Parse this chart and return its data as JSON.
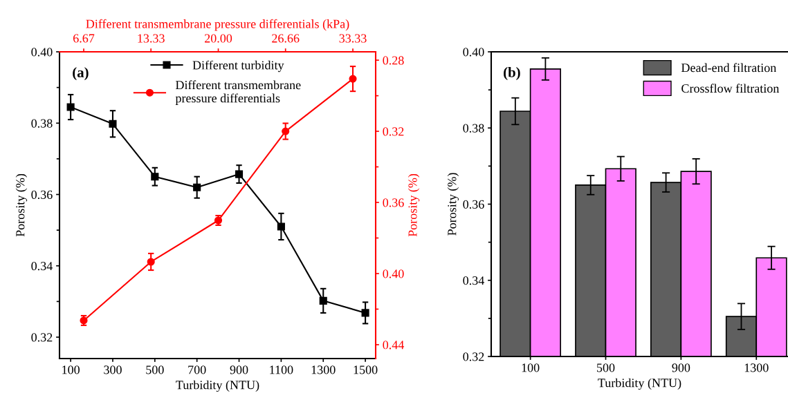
{
  "chart_data": [
    {
      "type": "line",
      "xlabel": "Turbidity (NTU)",
      "ylabel": "Porosity (%)",
      "annotations": [
        "(a)"
      ],
      "legend": "top",
      "grid": false,
      "xlim": [
        47,
        1549
      ],
      "xticks": [
        100,
        300,
        500,
        700,
        900,
        1100,
        1300,
        1500
      ],
      "ylim": [
        0.314,
        0.4
      ],
      "yticks": [
        {
          "value": 0.32,
          "label": "0.32"
        },
        {
          "value": 0.33,
          "label": null
        },
        {
          "value": 0.34,
          "label": "0.34"
        },
        {
          "value": 0.35,
          "label": null
        },
        {
          "value": 0.36,
          "label": "0.36"
        },
        {
          "value": 0.37,
          "label": null
        },
        {
          "value": 0.38,
          "label": "0.38"
        },
        {
          "value": 0.39,
          "label": null
        },
        {
          "value": 0.4,
          "label": "0.40"
        }
      ],
      "series": [
        {
          "name": "Different turbidity",
          "color": "#000000",
          "marker": "square",
          "x": [
            100,
            300,
            500,
            700,
            900,
            1100,
            1300,
            1500
          ],
          "values": [
            0.3845,
            0.3798,
            0.365,
            0.362,
            0.3657,
            0.351,
            0.3302,
            0.3268
          ],
          "errors": [
            0.0035,
            0.0037,
            0.0025,
            0.003,
            0.0025,
            0.0037,
            0.0034,
            0.003
          ]
        }
      ]
    },
    {
      "type": "line",
      "xlabel": "Different transmembrane pressure differentials (kPa)",
      "ylabel": "Porosity (%)",
      "legend": "top",
      "grid": false,
      "xlim": [
        4.27,
        35.59
      ],
      "xticks": [
        {
          "value": 6.67,
          "label": "6.67"
        },
        {
          "value": 13.33,
          "label": "13.33"
        },
        {
          "value": 20.0,
          "label": "20.00"
        },
        {
          "value": 26.66,
          "label": "26.66"
        },
        {
          "value": 33.33,
          "label": "33.33"
        }
      ],
      "ylim": [
        0.4478,
        0.2753
      ],
      "yticks": [
        {
          "value": 0.28,
          "label": "0.28"
        },
        {
          "value": 0.3,
          "label": null
        },
        {
          "value": 0.32,
          "label": "0.32"
        },
        {
          "value": 0.34,
          "label": null
        },
        {
          "value": 0.36,
          "label": "0.36"
        },
        {
          "value": 0.38,
          "label": null
        },
        {
          "value": 0.4,
          "label": "0.40"
        },
        {
          "value": 0.42,
          "label": null
        },
        {
          "value": 0.44,
          "label": "0.44"
        }
      ],
      "series": [
        {
          "name": "Different transmembrane\npressure differentials",
          "color": "#ff0000",
          "marker": "circle",
          "x": [
            6.67,
            13.33,
            20.0,
            26.66,
            33.33
          ],
          "values": [
            0.4264,
            0.3934,
            0.3701,
            0.32,
            0.2905
          ],
          "errors": [
            0.0027,
            0.0047,
            0.0027,
            0.0045,
            0.007
          ]
        }
      ]
    },
    {
      "type": "bar",
      "xlabel": "Turbidity (NTU)",
      "ylabel": "Porosity (%)",
      "annotations": [
        "(b)"
      ],
      "legend": "top right",
      "grid": false,
      "categories": [
        "100",
        "500",
        "900",
        "1300"
      ],
      "ylim": [
        0.32,
        0.4
      ],
      "yticks": [
        {
          "value": 0.32,
          "label": "0.32"
        },
        {
          "value": 0.33,
          "label": null
        },
        {
          "value": 0.34,
          "label": "0.34"
        },
        {
          "value": 0.35,
          "label": null
        },
        {
          "value": 0.36,
          "label": "0.36"
        },
        {
          "value": 0.37,
          "label": null
        },
        {
          "value": 0.38,
          "label": "0.38"
        },
        {
          "value": 0.39,
          "label": null
        },
        {
          "value": 0.4,
          "label": "0.40"
        }
      ],
      "series": [
        {
          "name": "Dead-end filtration",
          "color": "#5f5f5f",
          "values": [
            0.3844,
            0.365,
            0.3657,
            0.3305
          ],
          "errors": [
            0.0035,
            0.0025,
            0.0025,
            0.0034
          ]
        },
        {
          "name": "Crossflow filtration",
          "color": "#ff80ff",
          "values": [
            0.3955,
            0.3693,
            0.3686,
            0.3459
          ],
          "errors": [
            0.0029,
            0.0032,
            0.0033,
            0.003
          ]
        }
      ]
    }
  ]
}
